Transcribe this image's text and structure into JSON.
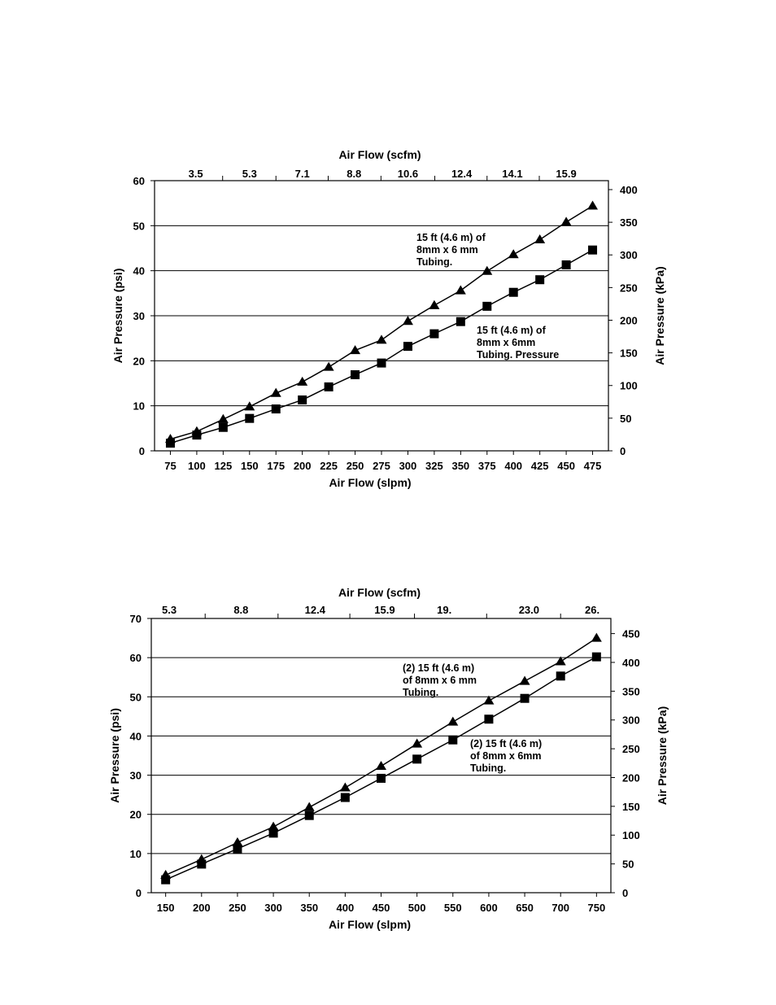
{
  "chart_data": [
    {
      "type": "line",
      "xlabel": "Air Flow (slpm)",
      "x2label": "Air Flow (scfm)",
      "ylabel": "Air Pressure (psi)",
      "y2label": "Air Pressure (kPa)",
      "x": [
        75,
        100,
        125,
        150,
        175,
        200,
        225,
        250,
        275,
        300,
        325,
        350,
        375,
        400,
        425,
        450,
        475
      ],
      "xlim": [
        60,
        490
      ],
      "ylim": [
        0,
        60
      ],
      "y_ticks": [
        0,
        10,
        20,
        30,
        40,
        50,
        60
      ],
      "y2_ticks": [
        0,
        50,
        100,
        150,
        200,
        250,
        300,
        350,
        400
      ],
      "y2lim": [
        0,
        413.7
      ],
      "x2_ticks": [
        {
          "label": "3.5",
          "at": 99
        },
        {
          "label": "5.3",
          "at": 150
        },
        {
          "label": "7.1",
          "at": 200
        },
        {
          "label": "8.8",
          "at": 249
        },
        {
          "label": "10.6",
          "at": 300
        },
        {
          "label": "12.4",
          "at": 351
        },
        {
          "label": "14.1",
          "at": 399
        },
        {
          "label": "15.9",
          "at": 450
        }
      ],
      "grid": true,
      "series": [
        {
          "marker": "triangle",
          "values": [
            2.6,
            4.3,
            7,
            9.8,
            12.8,
            15.3,
            18.6,
            22.3,
            24.6,
            28.8,
            32.3,
            35.6,
            39.9,
            43.6,
            46.9,
            50.8,
            54.4
          ]
        },
        {
          "marker": "square",
          "values": [
            1.7,
            3.5,
            5.2,
            7.2,
            9.3,
            11.3,
            14.2,
            16.9,
            19.5,
            23.2,
            26,
            28.7,
            32.1,
            35.2,
            38,
            41.3,
            44.6
          ]
        }
      ],
      "annotations": [
        {
          "lines": [
            "15 ft (4.6 m) of",
            "8mm x 6 mm",
            "Tubing."
          ]
        },
        {
          "lines": [
            "15 ft (4.6 m) of",
            "8mm x 6mm",
            "Tubing. Pressure"
          ]
        }
      ]
    },
    {
      "type": "line",
      "xlabel": "Air Flow (slpm)",
      "x2label": "Air Flow (scfm)",
      "ylabel": "Air Pressure (psi)",
      "y2label": "Air Pressure (kPa)",
      "x": [
        150,
        200,
        250,
        300,
        350,
        400,
        450,
        500,
        550,
        600,
        650,
        700,
        750
      ],
      "xlim": [
        130,
        770
      ],
      "ylim": [
        0,
        70
      ],
      "y_ticks": [
        0,
        10,
        20,
        30,
        40,
        50,
        60,
        70
      ],
      "y2_ticks": [
        0,
        50,
        100,
        150,
        200,
        250,
        300,
        350,
        400,
        450
      ],
      "y2lim": [
        0,
        476.3
      ],
      "x2_ticks": [
        {
          "label": "5.3",
          "at": 155
        },
        {
          "label": "8.8",
          "at": 255
        },
        {
          "label": "12.4",
          "at": 358
        },
        {
          "label": "15.9",
          "at": 455
        },
        {
          "label": "19.",
          "at": 538
        },
        {
          "label": "23.0",
          "at": 656
        },
        {
          "label": "26.",
          "at": 744
        }
      ],
      "grid": true,
      "series": [
        {
          "marker": "triangle",
          "values": [
            4.5,
            8.5,
            12.8,
            16.8,
            21.8,
            26.8,
            32.3,
            38,
            43.6,
            49,
            54,
            59,
            65
          ]
        },
        {
          "marker": "square",
          "values": [
            3.3,
            7.3,
            11.2,
            15.2,
            19.7,
            24.3,
            29.2,
            34.1,
            39,
            44.3,
            49.6,
            55.3,
            60.2
          ]
        }
      ],
      "annotations": [
        {
          "lines": [
            "(2) 15 ft (4.6 m)",
            "of 8mm x 6 mm",
            "Tubing."
          ]
        },
        {
          "lines": [
            "(2) 15 ft (4.6 m)",
            "of 8mm x 6mm",
            "Tubing."
          ]
        }
      ]
    }
  ]
}
